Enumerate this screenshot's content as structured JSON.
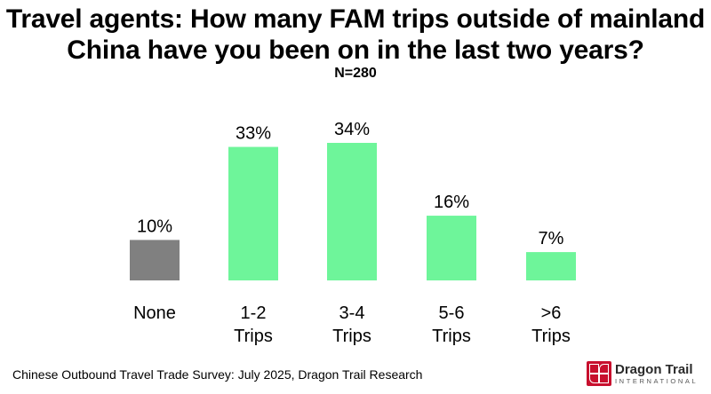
{
  "chart_data": {
    "type": "bar",
    "title": "Travel agents: How many FAM trips outside of mainland China have you been on in the last two years?",
    "subtitle": "N=280",
    "categories": [
      [
        "None"
      ],
      [
        "1-2",
        "Trips"
      ],
      [
        "3-4",
        "Trips"
      ],
      [
        "5-6",
        "Trips"
      ],
      [
        ">6",
        "Trips"
      ]
    ],
    "values": [
      10,
      33,
      34,
      16,
      7
    ],
    "value_labels": [
      "10%",
      "33%",
      "34%",
      "16%",
      "7%"
    ],
    "unit": "%",
    "colors": [
      "#808080",
      "#6ef59a",
      "#6ef59a",
      "#6ef59a",
      "#6ef59a"
    ],
    "ylim": [
      0,
      34
    ],
    "grid": false,
    "xlabel": "",
    "ylabel": ""
  },
  "footer": {
    "source": "Chinese Outbound Travel Trade Survey: July 2025, Dragon Trail Research",
    "logo_name": "Dragon Trail",
    "logo_sub": "INTERNATIONAL"
  }
}
